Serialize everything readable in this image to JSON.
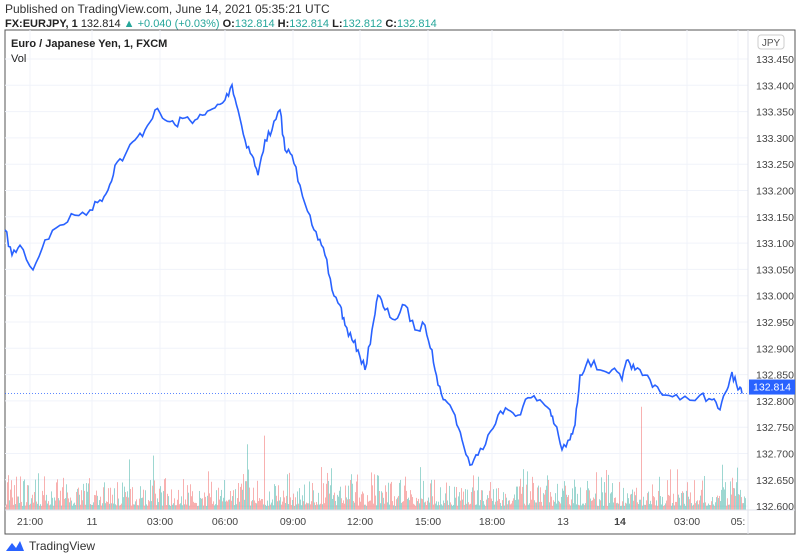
{
  "header": {
    "published": "Published on TradingView.com, June 14, 2021 05:35:21 UTC",
    "symbol": "FX:EURJPY, 1",
    "last": "132.814",
    "change": "+0.040 (+0.03%)",
    "o_label": "O:",
    "o": "132.814",
    "h_label": "H:",
    "h": "132.814",
    "l_label": "L:",
    "l": "132.812",
    "c_label": "C:",
    "c": "132.814"
  },
  "legend": {
    "title": "Euro / Japanese Yen, 1, FXCM",
    "vol": "Vol"
  },
  "footer": {
    "brand": "TradingView"
  },
  "colors": {
    "line": "#2962ff",
    "up": "#26a69a",
    "down": "#ef5350"
  },
  "chart_data": {
    "type": "line",
    "title": "Euro / Japanese Yen, 1, FXCM",
    "currency": "JPY",
    "ylim": [
      132.58,
      133.5
    ],
    "yticks": [
      "133.450",
      "133.400",
      "133.350",
      "133.300",
      "133.250",
      "133.200",
      "133.150",
      "133.100",
      "133.050",
      "133.000",
      "132.950",
      "132.900",
      "132.850",
      "132.800",
      "132.750",
      "132.700",
      "132.650",
      "132.600"
    ],
    "xticks": [
      "21:00",
      "11",
      "03:00",
      "06:00",
      "09:00",
      "12:00",
      "15:00",
      "18:00",
      "13",
      "14",
      "03:00",
      "05:"
    ],
    "current_price": "132.814",
    "x": [
      0,
      7,
      15,
      28,
      40,
      55,
      70,
      85,
      95,
      103,
      110,
      120,
      130,
      140,
      150,
      160,
      170,
      180,
      190,
      200,
      210,
      220,
      227,
      233,
      240,
      247,
      253,
      260,
      267,
      275,
      280,
      287,
      295,
      305,
      313,
      320,
      327,
      335,
      340,
      347,
      353,
      360,
      367,
      373,
      380,
      390,
      400,
      410,
      420,
      427,
      433,
      440,
      450,
      457,
      465,
      473,
      483,
      493,
      503,
      513,
      523,
      535,
      545,
      550,
      557,
      565,
      570,
      575,
      583,
      595,
      607,
      617,
      623,
      630,
      640,
      650,
      660,
      675,
      695,
      707,
      715,
      722,
      727,
      733,
      737
    ],
    "values": [
      133.125,
      133.077,
      133.096,
      133.049,
      133.106,
      133.134,
      133.153,
      133.163,
      133.182,
      133.201,
      133.248,
      133.267,
      133.296,
      133.315,
      133.353,
      133.334,
      133.325,
      133.338,
      133.334,
      133.344,
      133.357,
      133.372,
      133.401,
      133.353,
      133.296,
      133.267,
      133.229,
      133.296,
      133.315,
      133.353,
      133.277,
      133.267,
      133.21,
      133.153,
      133.106,
      133.077,
      133.011,
      132.982,
      132.944,
      132.916,
      132.897,
      132.859,
      132.935,
      133.001,
      132.973,
      132.954,
      132.982,
      132.935,
      132.944,
      132.897,
      132.83,
      132.802,
      132.773,
      132.726,
      132.678,
      132.697,
      132.735,
      132.773,
      132.783,
      132.773,
      132.806,
      132.802,
      132.783,
      132.754,
      132.707,
      132.726,
      132.754,
      132.849,
      132.878,
      132.859,
      132.859,
      132.84,
      132.878,
      132.859,
      132.849,
      132.83,
      132.811,
      132.802,
      132.811,
      132.802,
      132.783,
      132.821,
      132.855,
      132.821,
      132.814
    ]
  }
}
